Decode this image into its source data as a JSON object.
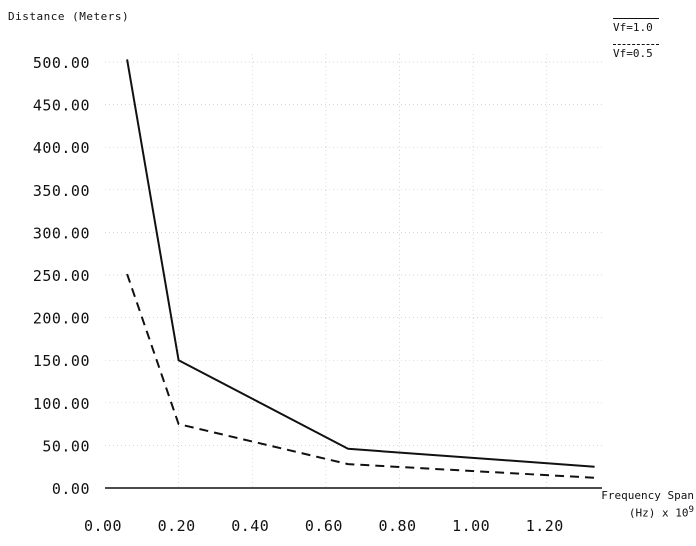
{
  "chart_data": {
    "type": "line",
    "ylabel": "Distance (Meters)",
    "xlabel_line1": "Frequency Span",
    "xlabel_line2_prefix": "(Hz) x 10",
    "xlabel_exp": "9",
    "ylim": [
      0,
      500
    ],
    "xlim": [
      0,
      1.35
    ],
    "yticks": [
      "0.00",
      "50.00",
      "100.00",
      "150.00",
      "200.00",
      "250.00",
      "300.00",
      "350.00",
      "400.00",
      "450.00",
      "500.00"
    ],
    "ytick_values": [
      0,
      50,
      100,
      150,
      200,
      250,
      300,
      350,
      400,
      450,
      500
    ],
    "xticks": [
      "0.00",
      "0.20",
      "0.40",
      "0.60",
      "0.80",
      "1.00",
      "1.20"
    ],
    "xtick_values": [
      0.0,
      0.2,
      0.4,
      0.6,
      0.8,
      1.0,
      1.2
    ],
    "grid": true,
    "legend_position": "top-right",
    "series": [
      {
        "name": "Vf=1.0",
        "style": "solid",
        "x": [
          0.06,
          0.2,
          0.66,
          1.33
        ],
        "y": [
          503,
          150,
          46,
          25
        ]
      },
      {
        "name": "Vf=0.5",
        "style": "dashed",
        "x": [
          0.06,
          0.2,
          0.66,
          1.33
        ],
        "y": [
          251,
          75,
          28,
          12
        ]
      }
    ]
  }
}
